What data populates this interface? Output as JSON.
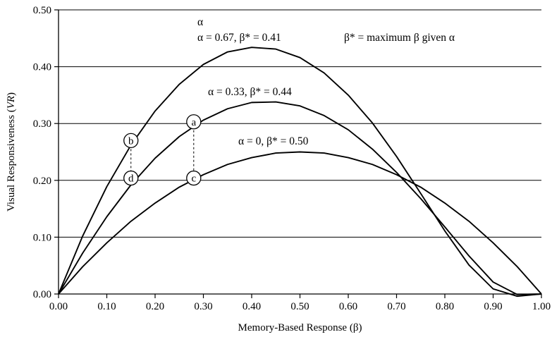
{
  "chart_data": {
    "type": "line",
    "title": "",
    "xlabel": "Memory-Based Response (β)",
    "ylabel_main": "Visual Responsiveness (",
    "ylabel_italic": "VR",
    "ylabel_end": ")",
    "xlim": [
      0,
      1
    ],
    "ylim": [
      0,
      0.5
    ],
    "x_ticks": [
      "0.00",
      "0.10",
      "0.20",
      "0.30",
      "0.40",
      "0.50",
      "0.60",
      "0.70",
      "0.80",
      "0.90",
      "1.00"
    ],
    "y_ticks": [
      "0.00",
      "0.10",
      "0.20",
      "0.30",
      "0.40",
      "0.50"
    ],
    "grid": "horizontal",
    "legend": "none",
    "series": [
      {
        "alpha": 0.67,
        "label": "α = 0.67, β* = 0.41",
        "x": [
          0,
          0.05,
          0.1,
          0.15,
          0.2,
          0.25,
          0.3,
          0.35,
          0.4,
          0.45,
          0.5,
          0.55,
          0.6,
          0.65,
          0.7,
          0.75,
          0.8,
          0.85,
          0.9,
          0.95,
          1.0
        ],
        "y": [
          0,
          0.102,
          0.189,
          0.262,
          0.322,
          0.369,
          0.404,
          0.426,
          0.434,
          0.431,
          0.416,
          0.389,
          0.35,
          0.301,
          0.242,
          0.177,
          0.111,
          0.051,
          0.009,
          -0.004,
          0
        ]
      },
      {
        "alpha": 0.33,
        "label": "α = 0.33, β* = 0.44",
        "x": [
          0,
          0.05,
          0.1,
          0.15,
          0.2,
          0.25,
          0.3,
          0.35,
          0.4,
          0.45,
          0.5,
          0.55,
          0.6,
          0.65,
          0.7,
          0.75,
          0.8,
          0.85,
          0.9,
          0.95,
          1.0
        ],
        "y": [
          0,
          0.072,
          0.136,
          0.192,
          0.239,
          0.277,
          0.306,
          0.326,
          0.337,
          0.338,
          0.331,
          0.314,
          0.289,
          0.255,
          0.214,
          0.168,
          0.118,
          0.067,
          0.021,
          -0.001,
          0
        ]
      },
      {
        "alpha": 0,
        "label": "α = 0, β* = 0.50",
        "x": [
          0,
          0.05,
          0.1,
          0.15,
          0.2,
          0.25,
          0.3,
          0.35,
          0.4,
          0.45,
          0.5,
          0.55,
          0.6,
          0.65,
          0.7,
          0.75,
          0.8,
          0.85,
          0.9,
          0.95,
          1.0
        ],
        "y": [
          0,
          0.048,
          0.09,
          0.128,
          0.16,
          0.188,
          0.21,
          0.228,
          0.24,
          0.248,
          0.25,
          0.248,
          0.24,
          0.228,
          0.21,
          0.188,
          0.16,
          0.128,
          0.09,
          0.048,
          0
        ]
      }
    ],
    "annotations": {
      "alpha_symbol": "α",
      "definition": "β* = maximum β given α"
    },
    "markers": [
      {
        "letter": "a",
        "x": 0.28,
        "y": 0.303
      },
      {
        "letter": "b",
        "x": 0.15,
        "y": 0.27
      },
      {
        "letter": "c",
        "x": 0.28,
        "y": 0.204
      },
      {
        "letter": "d",
        "x": 0.15,
        "y": 0.204
      }
    ],
    "dashed_links": [
      {
        "x": 0.28,
        "y1": 0.303,
        "y2": 0.204
      },
      {
        "x": 0.15,
        "y1": 0.27,
        "y2": 0.204
      }
    ]
  }
}
